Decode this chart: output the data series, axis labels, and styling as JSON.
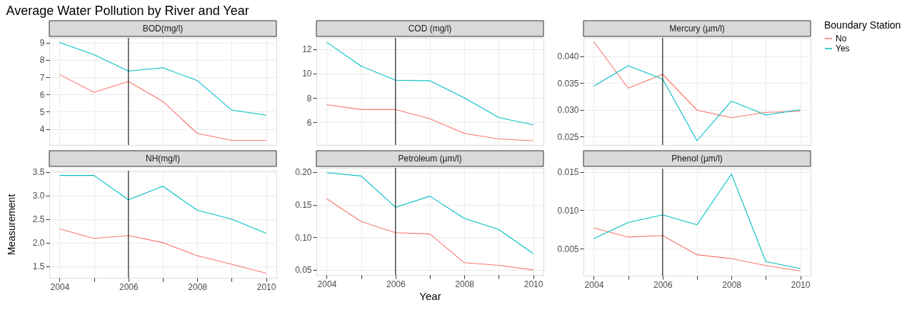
{
  "chart_data": [
    {
      "type": "line",
      "title": "BOD(mg/l)",
      "annotations": [
        "Average Water Pollution by River and Year"
      ],
      "x": [
        2004,
        2005,
        2006,
        2007,
        2008,
        2009,
        2010
      ],
      "xlim": [
        2003.7,
        2010.3
      ],
      "xticks": [
        2004,
        {
          "value": 2005,
          "label": null
        },
        2006,
        {
          "value": 2007,
          "label": null
        },
        2008,
        {
          "value": 2009,
          "label": null
        },
        2010
      ],
      "ylim": [
        3.08,
        9.27
      ],
      "yticks": [
        4,
        5,
        6,
        7,
        8,
        9
      ],
      "grid": true,
      "tick_labels": "y",
      "legend": false,
      "ref_lines": [
        {
          "axis": "x",
          "value": 2006,
          "color": "#000000"
        }
      ],
      "series": [
        {
          "color": "#f8766d",
          "values": [
            7.15,
            6.12,
            6.75,
            5.6,
            3.75,
            3.35,
            3.35
          ]
        },
        {
          "color": "#00bfc4",
          "values": [
            9.0,
            8.3,
            7.35,
            7.55,
            6.8,
            5.1,
            4.8
          ]
        }
      ]
    },
    {
      "type": "line",
      "title": "COD (mg/l)",
      "x": [
        2004,
        2005,
        2006,
        2007,
        2008,
        2009,
        2010
      ],
      "xlim": [
        2003.7,
        2010.3
      ],
      "xticks": [
        2004,
        {
          "value": 2005,
          "label": null
        },
        2006,
        {
          "value": 2007,
          "label": null
        },
        2008,
        {
          "value": 2009,
          "label": null
        },
        2010
      ],
      "ylim": [
        4.15,
        12.91
      ],
      "yticks": [
        6,
        8,
        10,
        12
      ],
      "grid": true,
      "tick_labels": "y",
      "legend": false,
      "ref_lines": [
        {
          "axis": "x",
          "value": 2006,
          "color": "#000000"
        }
      ],
      "series": [
        {
          "color": "#f8766d",
          "values": [
            7.45,
            7.05,
            7.05,
            6.3,
            5.1,
            4.65,
            4.5
          ]
        },
        {
          "color": "#00bfc4",
          "values": [
            12.55,
            10.6,
            9.45,
            9.4,
            8.0,
            6.4,
            5.8
          ]
        }
      ]
    },
    {
      "type": "line",
      "title": "Mercury (µm/l)",
      "legend_title": "Boundary Station",
      "x": [
        2004,
        2005,
        2006,
        2007,
        2008,
        2009,
        2010
      ],
      "xlim": [
        2003.7,
        2010.3
      ],
      "xticks": [
        2004,
        {
          "value": 2005,
          "label": null
        },
        2006,
        {
          "value": 2007,
          "label": null
        },
        2008,
        {
          "value": 2009,
          "label": null
        },
        2010
      ],
      "ylim": [
        0.0234,
        0.0434
      ],
      "yticks": [
        {
          "value": 0.025,
          "label": "0.025"
        },
        {
          "value": 0.03,
          "label": "0.030"
        },
        {
          "value": 0.035,
          "label": "0.035"
        },
        {
          "value": 0.04,
          "label": "0.040"
        }
      ],
      "grid": true,
      "tick_labels": "y",
      "legend": "right",
      "ref_lines": [
        {
          "axis": "x",
          "value": 2006,
          "color": "#000000"
        }
      ],
      "series": [
        {
          "name": "No",
          "color": "#f8766d",
          "values": [
            0.0427,
            0.034,
            0.0366,
            0.0299,
            0.0285,
            0.0295,
            0.0297
          ]
        },
        {
          "name": "Yes",
          "color": "#00bfc4",
          "values": [
            0.0344,
            0.0382,
            0.0357,
            0.0242,
            0.0316,
            0.029,
            0.03
          ]
        }
      ]
    },
    {
      "type": "line",
      "title": "NH(mg/l)",
      "ylabel": "Measurement",
      "x": [
        2004,
        2005,
        2006,
        2007,
        2008,
        2009,
        2010
      ],
      "xlim": [
        2003.7,
        2010.3
      ],
      "xticks": [
        2004,
        {
          "value": 2005,
          "label": null
        },
        2006,
        {
          "value": 2007,
          "label": null
        },
        2008,
        {
          "value": 2009,
          "label": null
        },
        2010
      ],
      "ylim": [
        1.25,
        3.53
      ],
      "yticks": [
        {
          "value": 1.5,
          "label": "1.5"
        },
        {
          "value": 2,
          "label": "2.0"
        },
        {
          "value": 2.5,
          "label": "2.5"
        },
        {
          "value": 3,
          "label": "3.0"
        },
        {
          "value": 3.5,
          "label": "3.5"
        }
      ],
      "grid": true,
      "legend": false,
      "ref_lines": [
        {
          "axis": "x",
          "value": 2006,
          "color": "#000000"
        }
      ],
      "series": [
        {
          "color": "#f8766d",
          "values": [
            2.29,
            2.09,
            2.15,
            2.0,
            1.72,
            1.54,
            1.35
          ]
        },
        {
          "color": "#00bfc4",
          "values": [
            3.43,
            3.43,
            2.91,
            3.2,
            2.69,
            2.5,
            2.2
          ]
        }
      ]
    },
    {
      "type": "line",
      "title": "Petroleum (µm/l)",
      "xlabel": "Year",
      "x": [
        2004,
        2005,
        2006,
        2007,
        2008,
        2009,
        2010
      ],
      "xlim": [
        2003.7,
        2010.3
      ],
      "xticks": [
        2004,
        {
          "value": 2005,
          "label": null
        },
        2006,
        {
          "value": 2007,
          "label": null
        },
        2008,
        {
          "value": 2009,
          "label": null
        },
        2010
      ],
      "ylim": [
        0.0422,
        0.2064
      ],
      "yticks": [
        {
          "value": 0.05,
          "label": "0.05"
        },
        {
          "value": 0.1,
          "label": "0.10"
        },
        {
          "value": 0.15,
          "label": "0.15"
        },
        {
          "value": 0.2,
          "label": "0.20"
        }
      ],
      "grid": true,
      "legend": false,
      "ref_lines": [
        {
          "axis": "x",
          "value": 2006,
          "color": "#000000"
        }
      ],
      "series": [
        {
          "color": "#f8766d",
          "values": [
            0.159,
            0.124,
            0.107,
            0.105,
            0.061,
            0.057,
            0.05
          ]
        },
        {
          "color": "#00bfc4",
          "values": [
            0.199,
            0.194,
            0.146,
            0.163,
            0.129,
            0.112,
            0.075
          ]
        }
      ]
    },
    {
      "type": "line",
      "title": "Phenol (µm/l)",
      "x": [
        2004,
        2005,
        2006,
        2007,
        2008,
        2009,
        2010
      ],
      "xlim": [
        2003.7,
        2010.3
      ],
      "xticks": [
        2004,
        {
          "value": 2005,
          "label": null
        },
        2006,
        {
          "value": 2007,
          "label": null
        },
        2008,
        {
          "value": 2009,
          "label": null
        },
        2010
      ],
      "ylim": [
        0.00147,
        0.01542
      ],
      "yticks": [
        {
          "value": 0.005,
          "label": "0.005"
        },
        {
          "value": 0.01,
          "label": "0.010"
        },
        {
          "value": 0.015,
          "label": "0.015"
        }
      ],
      "grid": true,
      "legend": false,
      "ref_lines": [
        {
          "axis": "x",
          "value": 2006,
          "color": "#000000"
        }
      ],
      "series": [
        {
          "color": "#f8766d",
          "values": [
            0.0077,
            0.0065,
            0.0067,
            0.0042,
            0.0037,
            0.0028,
            0.0021
          ]
        },
        {
          "color": "#00bfc4",
          "values": [
            0.0063,
            0.0084,
            0.0094,
            0.0081,
            0.0147,
            0.0033,
            0.0024
          ]
        }
      ]
    }
  ]
}
